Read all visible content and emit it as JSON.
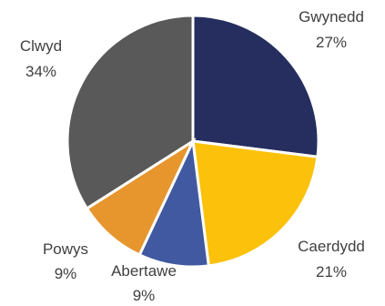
{
  "chart_data": {
    "type": "pie",
    "slices": [
      {
        "name": "Gwynedd",
        "value": 27,
        "value_label": "27%",
        "color": "#252e5e"
      },
      {
        "name": "Caerdydd",
        "value": 21,
        "value_label": "21%",
        "color": "#fcc10a"
      },
      {
        "name": "Abertawe",
        "value": 9,
        "value_label": "9%",
        "color": "#4159a0"
      },
      {
        "name": "Powys",
        "value": 9,
        "value_label": "9%",
        "color": "#e7952d"
      },
      {
        "name": "Clwyd",
        "value": 34,
        "value_label": "34%",
        "color": "#595959"
      }
    ],
    "start": "12 o'clock",
    "direction": "clockwise",
    "legend": "none",
    "labels_outside": true
  }
}
